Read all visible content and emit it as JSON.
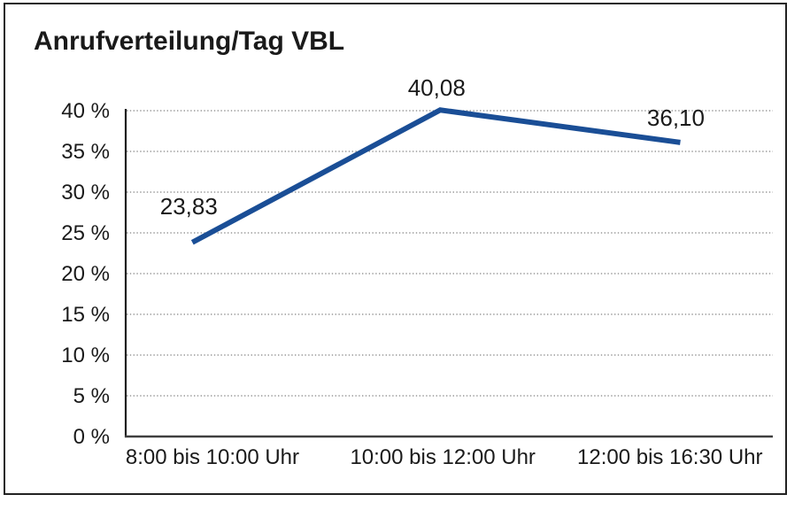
{
  "page": {
    "background": "#ffffff",
    "frame_border_color": "#222222"
  },
  "header": {
    "title": "Anrufverteilung/Tag VBL"
  },
  "chart_data": {
    "type": "line",
    "title": "Anrufverteilung/Tag VBL",
    "categories": [
      "8:00 bis 10:00 Uhr",
      "10:00 bis 12:00 Uhr",
      "12:00 bis 16:30 Uhr"
    ],
    "values": [
      23.83,
      40.08,
      36.1
    ],
    "value_labels": [
      "23,83",
      "40,08",
      "36,10"
    ],
    "xlabel": "",
    "ylabel": "",
    "ylim": [
      0,
      40
    ],
    "ytick_step": 5,
    "ytick_labels": [
      "0 %",
      "5 %",
      "10 %",
      "15 %",
      "20 %",
      "25 %",
      "30 %",
      "35 %",
      "40 %"
    ],
    "grid": "horizontal dotted gridlines every 5%, solid left y-axis and bottom x-axis, no right/top frame",
    "legend_position": "none",
    "colors": {
      "line": "#1a4e96",
      "grid": "#858585",
      "y_axis": "#1f1f1f",
      "x_axis": "#3f3f3f",
      "text": "#1a1a1a"
    }
  }
}
